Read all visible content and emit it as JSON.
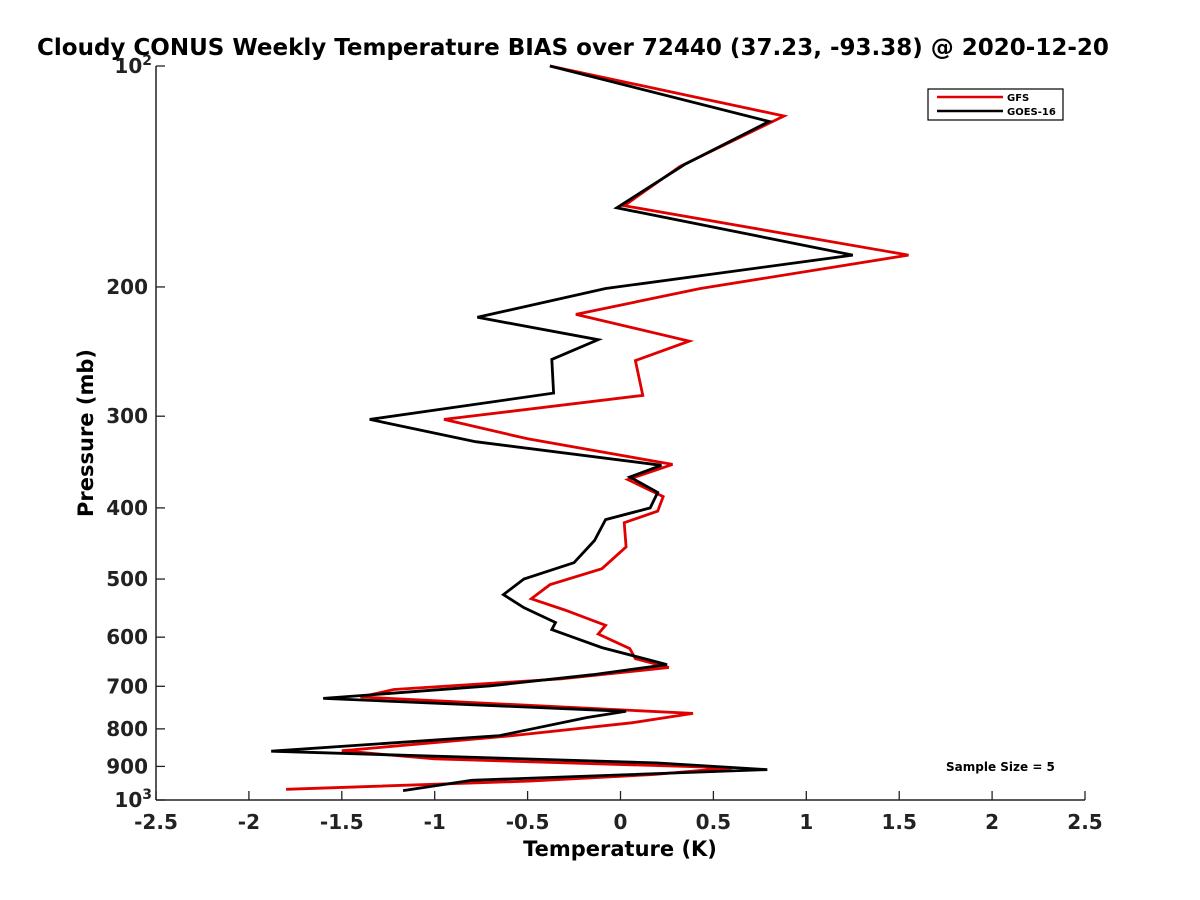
{
  "chart_data": {
    "type": "line",
    "title": "Cloudy CONUS Weekly Temperature BIAS over 72440 (37.23, -93.38) @ 2020-12-20",
    "xlabel": "Temperature (K)",
    "ylabel": "Pressure (mb)",
    "xlim": [
      -2.5,
      2.5
    ],
    "ylim": [
      100,
      1000
    ],
    "y_scale": "log",
    "y_reversed": true,
    "grid": false,
    "legend_position": "top-right",
    "x_ticks": [
      {
        "value": -2.5,
        "label": "-2.5"
      },
      {
        "value": -2,
        "label": "-2"
      },
      {
        "value": -1.5,
        "label": "-1.5"
      },
      {
        "value": -1,
        "label": "-1"
      },
      {
        "value": -0.5,
        "label": "-0.5"
      },
      {
        "value": 0,
        "label": "0"
      },
      {
        "value": 0.5,
        "label": "0.5"
      },
      {
        "value": 1,
        "label": "1"
      },
      {
        "value": 1.5,
        "label": "1.5"
      },
      {
        "value": 2,
        "label": "2"
      },
      {
        "value": 2.5,
        "label": "2.5"
      }
    ],
    "y_ticks": [
      {
        "value": 100,
        "label": "10",
        "sup": "2"
      },
      {
        "value": 200,
        "label": "200"
      },
      {
        "value": 300,
        "label": "300"
      },
      {
        "value": 400,
        "label": "400"
      },
      {
        "value": 500,
        "label": "500"
      },
      {
        "value": 600,
        "label": "600"
      },
      {
        "value": 700,
        "label": "700"
      },
      {
        "value": 800,
        "label": "800"
      },
      {
        "value": 900,
        "label": "900"
      },
      {
        "value": 1000,
        "label": "10",
        "sup": "3"
      }
    ],
    "annotation": "Sample Size = 5",
    "series": [
      {
        "name": "GFS",
        "color": "#e00000",
        "points": [
          [
            -0.38,
            100
          ],
          [
            0.88,
            117
          ],
          [
            0.32,
            137
          ],
          [
            0.02,
            155
          ],
          [
            1.55,
            181
          ],
          [
            0.43,
            201
          ],
          [
            -0.24,
            218
          ],
          [
            0.37,
            237
          ],
          [
            0.08,
            252
          ],
          [
            0.12,
            281
          ],
          [
            -0.95,
            303
          ],
          [
            -0.5,
            322
          ],
          [
            0.28,
            349
          ],
          [
            0.04,
            366
          ],
          [
            0.23,
            386
          ],
          [
            0.2,
            404
          ],
          [
            0.02,
            419
          ],
          [
            0.03,
            452
          ],
          [
            -0.1,
            484
          ],
          [
            -0.38,
            509
          ],
          [
            -0.48,
            532
          ],
          [
            -0.3,
            551
          ],
          [
            -0.08,
            578
          ],
          [
            -0.12,
            594
          ],
          [
            0.05,
            622
          ],
          [
            0.08,
            642
          ],
          [
            0.26,
            660
          ],
          [
            -0.32,
            684
          ],
          [
            -1.22,
            707
          ],
          [
            -1.4,
            724
          ],
          [
            0.06,
            755
          ],
          [
            0.39,
            762
          ],
          [
            0.06,
            785
          ],
          [
            -0.6,
            818
          ],
          [
            -1.5,
            857
          ],
          [
            -1.0,
            879
          ],
          [
            0.6,
            904
          ],
          [
            0.18,
            923
          ],
          [
            -0.48,
            942
          ],
          [
            -1.8,
            967
          ]
        ]
      },
      {
        "name": "GOES-16",
        "color": "#000000",
        "points": [
          [
            -0.38,
            100
          ],
          [
            0.8,
            119
          ],
          [
            0.35,
            136
          ],
          [
            -0.02,
            156
          ],
          [
            1.25,
            181
          ],
          [
            -0.08,
            201
          ],
          [
            -0.77,
            220
          ],
          [
            -0.12,
            236
          ],
          [
            -0.37,
            251
          ],
          [
            -0.36,
            279
          ],
          [
            -1.35,
            303
          ],
          [
            -0.78,
            325
          ],
          [
            0.22,
            350
          ],
          [
            0.05,
            363
          ],
          [
            0.2,
            381
          ],
          [
            0.16,
            400
          ],
          [
            -0.08,
            415
          ],
          [
            -0.14,
            443
          ],
          [
            -0.25,
            475
          ],
          [
            -0.52,
            500
          ],
          [
            -0.63,
            525
          ],
          [
            -0.52,
            547
          ],
          [
            -0.35,
            573
          ],
          [
            -0.37,
            586
          ],
          [
            -0.1,
            620
          ],
          [
            0.25,
            654
          ],
          [
            -0.15,
            675
          ],
          [
            -0.7,
            699
          ],
          [
            -1.6,
            727
          ],
          [
            0.03,
            757
          ],
          [
            -0.18,
            772
          ],
          [
            -0.65,
            817
          ],
          [
            -1.88,
            858
          ],
          [
            0.19,
            890
          ],
          [
            0.79,
            909
          ],
          [
            -0.8,
            940
          ],
          [
            -1.17,
            971
          ]
        ]
      }
    ]
  }
}
